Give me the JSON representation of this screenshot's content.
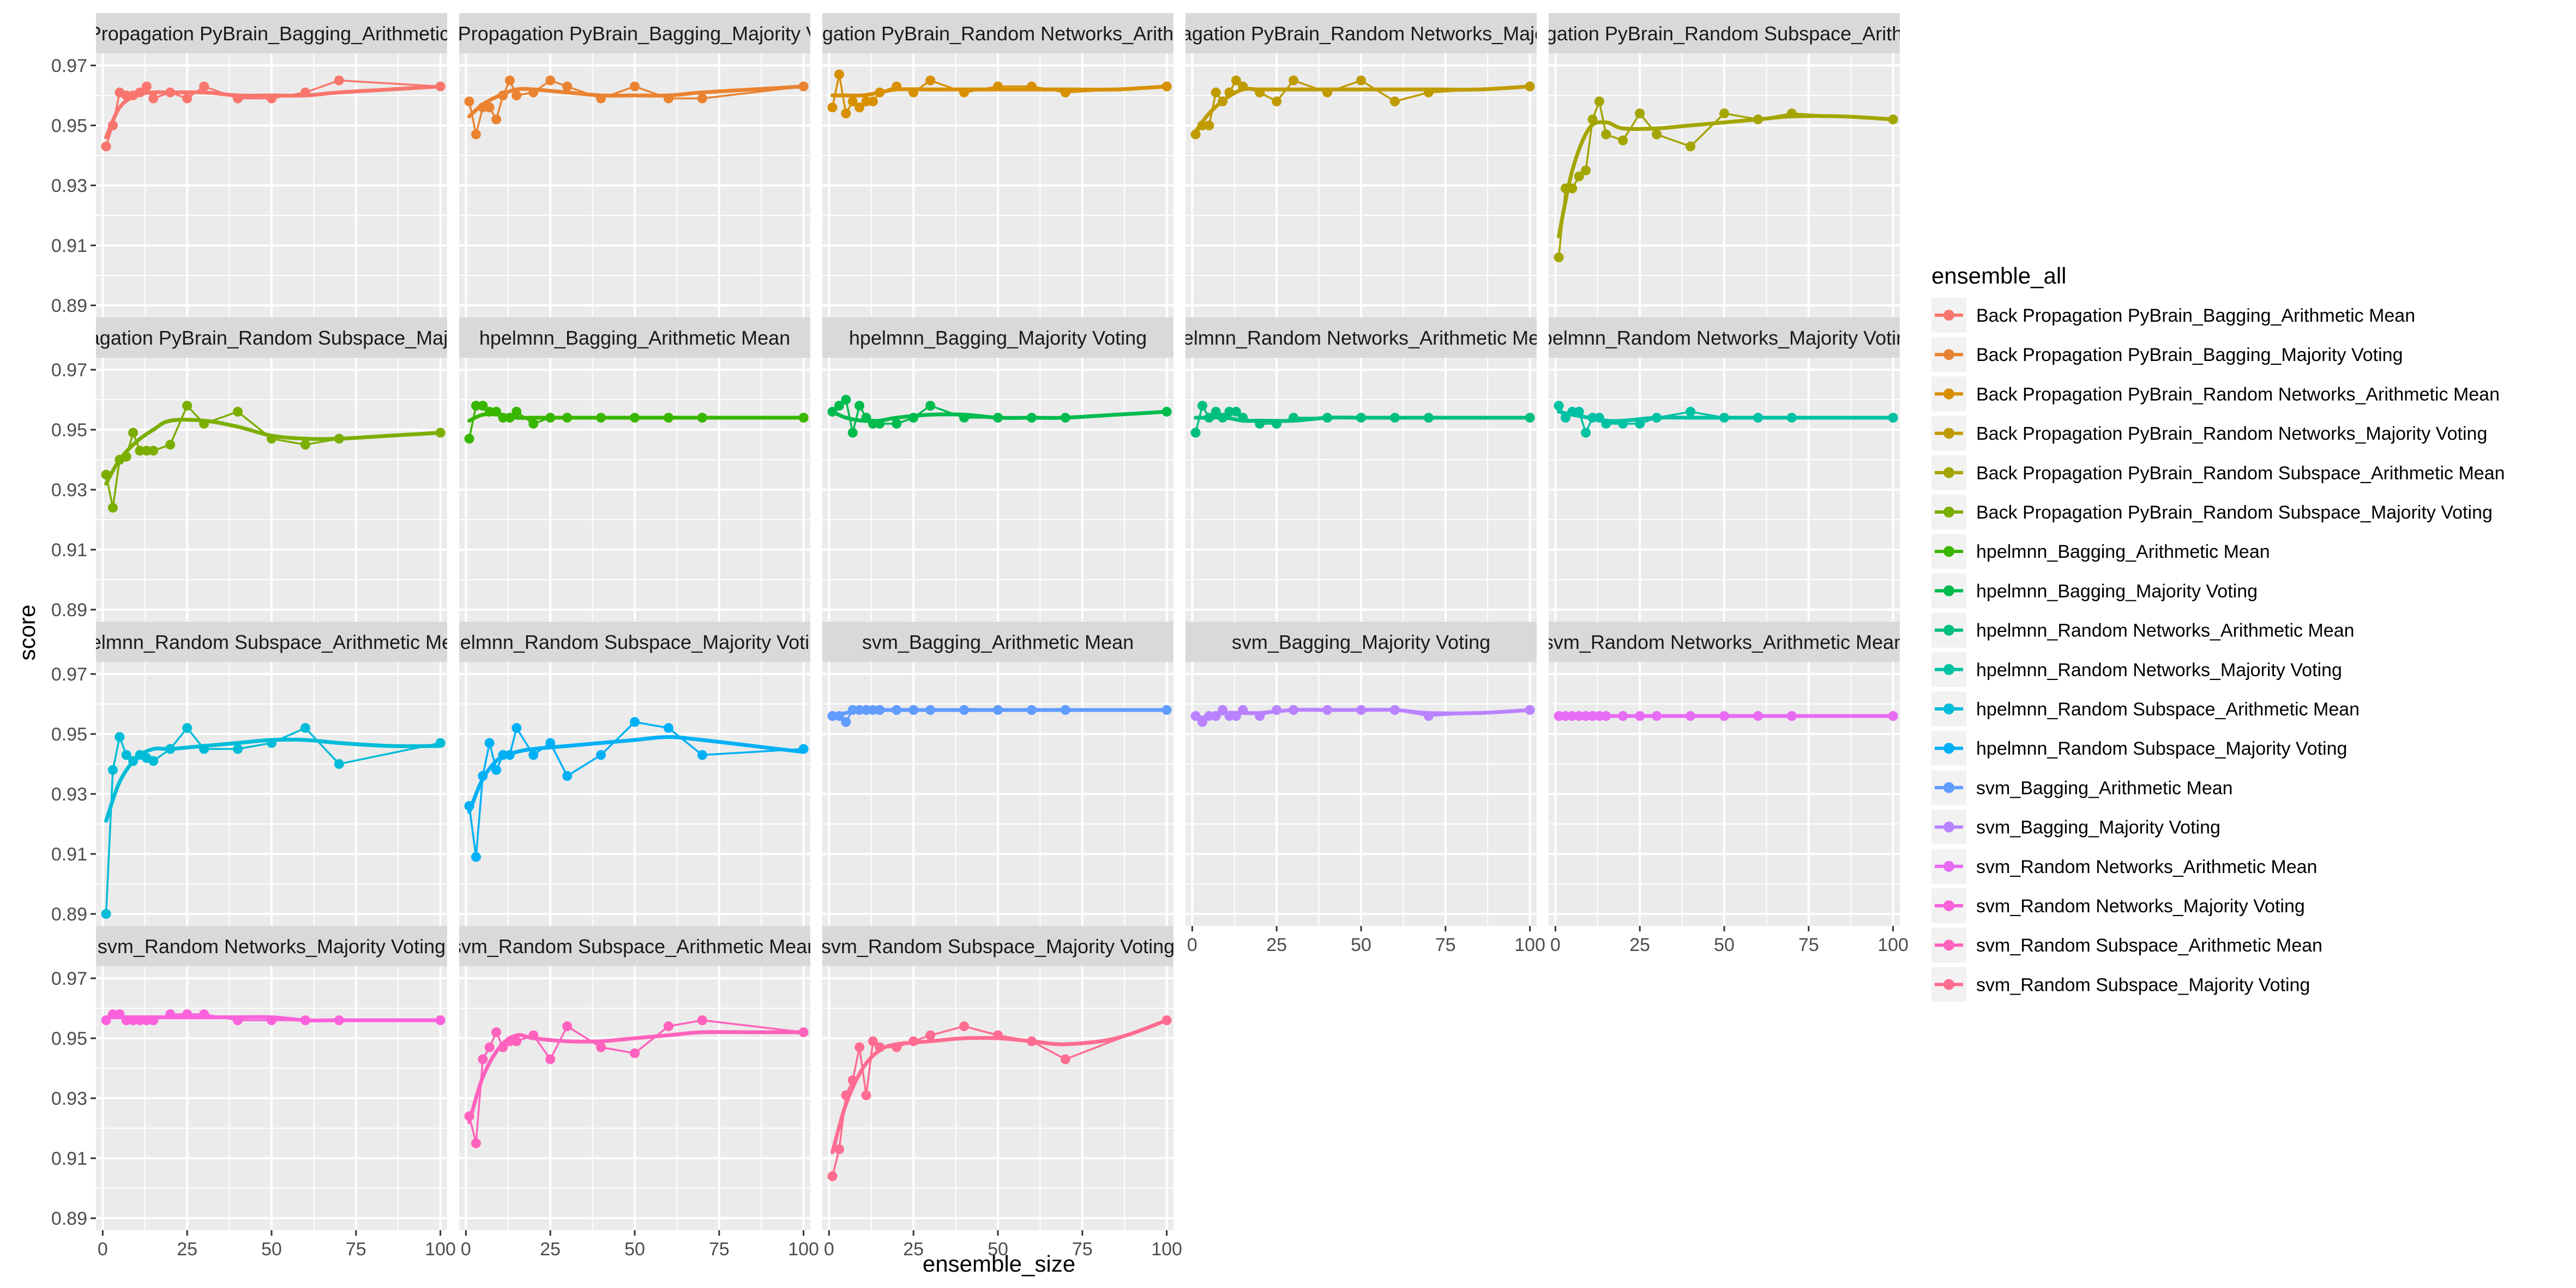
{
  "chart_data": {
    "type": "line",
    "xlabel": "ensemble_size",
    "ylabel": "score",
    "xlim": [
      -2,
      102
    ],
    "ylim": [
      0.886,
      0.974
    ],
    "x_ticks": [
      0,
      25,
      50,
      75,
      100
    ],
    "y_ticks": [
      0.89,
      0.91,
      0.93,
      0.95,
      0.97
    ],
    "x_tick_labels": [
      "0",
      "25",
      "50",
      "75",
      "100"
    ],
    "y_tick_labels": [
      "0.89",
      "0.91",
      "0.93",
      "0.95",
      "0.97"
    ],
    "facet_columns": 5,
    "grid": true,
    "panel_background": "#ebebeb",
    "strip_background": "#d9d9d9",
    "legend": {
      "title": "ensemble_all",
      "placement": "right"
    },
    "series": [
      {
        "name": "Back Propagation PyBrain_Bagging_Arithmetic Mean",
        "color": "#F8766D",
        "x": [
          1,
          3,
          5,
          7,
          9,
          11,
          13,
          15,
          20,
          25,
          30,
          40,
          50,
          60,
          70,
          100
        ],
        "y": [
          0.943,
          0.95,
          0.961,
          0.96,
          0.96,
          0.961,
          0.963,
          0.959,
          0.961,
          0.959,
          0.963,
          0.959,
          0.959,
          0.961,
          0.965,
          0.963
        ],
        "smooth": [
          0.946,
          0.956,
          0.96,
          0.961,
          0.961,
          0.961,
          0.96,
          0.96,
          0.96,
          0.961,
          0.962,
          0.963
        ]
      },
      {
        "name": "Back Propagation PyBrain_Bagging_Majority Voting",
        "color": "#EA8331",
        "x": [
          1,
          3,
          5,
          7,
          9,
          11,
          13,
          15,
          20,
          25,
          30,
          40,
          50,
          60,
          70,
          100
        ],
        "y": [
          0.958,
          0.947,
          0.956,
          0.956,
          0.952,
          0.96,
          0.965,
          0.96,
          0.961,
          0.965,
          0.963,
          0.959,
          0.963,
          0.959,
          0.959,
          0.963
        ],
        "smooth": [
          0.953,
          0.957,
          0.96,
          0.962,
          0.962,
          0.961,
          0.96,
          0.96,
          0.96,
          0.961,
          0.962,
          0.963
        ]
      },
      {
        "name": "Back Propagation PyBrain_Random Networks_Arithmetic Mean",
        "color": "#D89000",
        "x": [
          1,
          3,
          5,
          7,
          9,
          11,
          13,
          15,
          20,
          25,
          30,
          40,
          50,
          60,
          70,
          100
        ],
        "y": [
          0.956,
          0.967,
          0.954,
          0.958,
          0.956,
          0.958,
          0.958,
          0.961,
          0.963,
          0.961,
          0.965,
          0.961,
          0.963,
          0.963,
          0.961,
          0.963
        ],
        "smooth": [
          0.96,
          0.96,
          0.96,
          0.961,
          0.962,
          0.962,
          0.962,
          0.962,
          0.962,
          0.962,
          0.962,
          0.963
        ]
      },
      {
        "name": "Back Propagation PyBrain_Random Networks_Majority Voting",
        "color": "#C09B00",
        "x": [
          1,
          3,
          5,
          7,
          9,
          11,
          13,
          15,
          20,
          25,
          30,
          40,
          50,
          60,
          70,
          100
        ],
        "y": [
          0.947,
          0.95,
          0.95,
          0.961,
          0.958,
          0.961,
          0.965,
          0.963,
          0.961,
          0.958,
          0.965,
          0.961,
          0.965,
          0.958,
          0.961,
          0.963
        ],
        "smooth": [
          0.948,
          0.954,
          0.959,
          0.962,
          0.962,
          0.962,
          0.962,
          0.962,
          0.962,
          0.962,
          0.962,
          0.963
        ]
      },
      {
        "name": "Back Propagation PyBrain_Random Subspace_Arithmetic Mean",
        "color": "#A3A500",
        "x": [
          1,
          3,
          5,
          7,
          9,
          11,
          13,
          15,
          20,
          25,
          30,
          40,
          50,
          60,
          70,
          100
        ],
        "y": [
          0.906,
          0.929,
          0.929,
          0.933,
          0.935,
          0.952,
          0.958,
          0.947,
          0.945,
          0.954,
          0.947,
          0.943,
          0.954,
          0.952,
          0.954,
          0.952
        ],
        "smooth": [
          0.913,
          0.935,
          0.949,
          0.951,
          0.949,
          0.949,
          0.95,
          0.951,
          0.952,
          0.953,
          0.953,
          0.952
        ]
      },
      {
        "name": "Back Propagation PyBrain_Random Subspace_Majority Voting",
        "color": "#7CAE00",
        "x": [
          1,
          3,
          5,
          7,
          9,
          11,
          13,
          15,
          20,
          25,
          30,
          40,
          50,
          60,
          70,
          100
        ],
        "y": [
          0.935,
          0.924,
          0.94,
          0.941,
          0.949,
          0.943,
          0.943,
          0.943,
          0.945,
          0.958,
          0.952,
          0.956,
          0.947,
          0.945,
          0.947,
          0.949
        ],
        "smooth": [
          0.932,
          0.94,
          0.946,
          0.95,
          0.953,
          0.953,
          0.951,
          0.948,
          0.947,
          0.947,
          0.948,
          0.949
        ]
      },
      {
        "name": "hpelmnn_Bagging_Arithmetic Mean",
        "color": "#39B600",
        "x": [
          1,
          3,
          5,
          7,
          9,
          11,
          13,
          15,
          20,
          25,
          30,
          40,
          50,
          60,
          70,
          100
        ],
        "y": [
          0.947,
          0.958,
          0.958,
          0.956,
          0.956,
          0.954,
          0.954,
          0.956,
          0.952,
          0.954,
          0.954,
          0.954,
          0.954,
          0.954,
          0.954,
          0.954
        ],
        "smooth": [
          0.953,
          0.955,
          0.955,
          0.954,
          0.954,
          0.954,
          0.954,
          0.954,
          0.954,
          0.954,
          0.954,
          0.954
        ]
      },
      {
        "name": "hpelmnn_Bagging_Majority Voting",
        "color": "#00BB4E",
        "x": [
          1,
          3,
          5,
          7,
          9,
          11,
          13,
          15,
          20,
          25,
          30,
          40,
          50,
          60,
          70,
          100
        ],
        "y": [
          0.956,
          0.958,
          0.96,
          0.949,
          0.958,
          0.954,
          0.952,
          0.952,
          0.952,
          0.954,
          0.958,
          0.954,
          0.954,
          0.954,
          0.954,
          0.956
        ],
        "smooth": [
          0.956,
          0.954,
          0.953,
          0.953,
          0.954,
          0.955,
          0.955,
          0.954,
          0.954,
          0.954,
          0.955,
          0.956
        ]
      },
      {
        "name": "hpelmnn_Random Networks_Arithmetic Mean",
        "color": "#00BF7D",
        "x": [
          1,
          3,
          5,
          7,
          9,
          11,
          13,
          15,
          20,
          25,
          30,
          40,
          50,
          60,
          70,
          100
        ],
        "y": [
          0.949,
          0.958,
          0.954,
          0.956,
          0.954,
          0.956,
          0.956,
          0.954,
          0.952,
          0.952,
          0.954,
          0.954,
          0.954,
          0.954,
          0.954,
          0.954
        ],
        "smooth": [
          0.954,
          0.954,
          0.954,
          0.953,
          0.953,
          0.953,
          0.954,
          0.954,
          0.954,
          0.954,
          0.954,
          0.954
        ]
      },
      {
        "name": "hpelmnn_Random Networks_Majority Voting",
        "color": "#00C1A3",
        "x": [
          1,
          3,
          5,
          7,
          9,
          11,
          13,
          15,
          20,
          25,
          30,
          40,
          50,
          60,
          70,
          100
        ],
        "y": [
          0.958,
          0.954,
          0.956,
          0.956,
          0.949,
          0.954,
          0.954,
          0.952,
          0.952,
          0.952,
          0.954,
          0.956,
          0.954,
          0.954,
          0.954,
          0.954
        ],
        "smooth": [
          0.956,
          0.955,
          0.954,
          0.953,
          0.953,
          0.954,
          0.954,
          0.954,
          0.954,
          0.954,
          0.954,
          0.954
        ]
      },
      {
        "name": "hpelmnn_Random Subspace_Arithmetic Mean",
        "color": "#00BCD8",
        "x": [
          1,
          3,
          5,
          7,
          9,
          11,
          13,
          15,
          20,
          25,
          30,
          40,
          50,
          60,
          70,
          100
        ],
        "y": [
          0.89,
          0.938,
          0.949,
          0.943,
          0.941,
          0.943,
          0.942,
          0.941,
          0.945,
          0.952,
          0.945,
          0.945,
          0.947,
          0.952,
          0.94,
          0.947
        ],
        "smooth": [
          0.921,
          0.934,
          0.942,
          0.945,
          0.945,
          0.946,
          0.947,
          0.948,
          0.948,
          0.947,
          0.946,
          0.946
        ]
      },
      {
        "name": "hpelmnn_Random Subspace_Majority Voting",
        "color": "#00B0F6",
        "x": [
          1,
          3,
          5,
          7,
          9,
          11,
          13,
          15,
          20,
          25,
          30,
          40,
          50,
          60,
          70,
          100
        ],
        "y": [
          0.926,
          0.909,
          0.936,
          0.947,
          0.938,
          0.943,
          0.943,
          0.952,
          0.943,
          0.947,
          0.936,
          0.943,
          0.954,
          0.952,
          0.943,
          0.945
        ],
        "smooth": [
          0.924,
          0.935,
          0.942,
          0.944,
          0.945,
          0.946,
          0.947,
          0.948,
          0.949,
          0.948,
          0.946,
          0.944
        ]
      },
      {
        "name": "svm_Bagging_Arithmetic Mean",
        "color": "#619CFF",
        "x": [
          1,
          3,
          5,
          7,
          9,
          11,
          13,
          15,
          20,
          25,
          30,
          40,
          50,
          60,
          70,
          100
        ],
        "y": [
          0.956,
          0.956,
          0.954,
          0.958,
          0.958,
          0.958,
          0.958,
          0.958,
          0.958,
          0.958,
          0.958,
          0.958,
          0.958,
          0.958,
          0.958,
          0.958
        ],
        "smooth": [
          0.956,
          0.957,
          0.958,
          0.958,
          0.958,
          0.958,
          0.958,
          0.958,
          0.958,
          0.958,
          0.958,
          0.958
        ]
      },
      {
        "name": "svm_Bagging_Majority Voting",
        "color": "#B983FF",
        "x": [
          1,
          3,
          5,
          7,
          9,
          11,
          13,
          15,
          20,
          25,
          30,
          40,
          50,
          60,
          70,
          100
        ],
        "y": [
          0.956,
          0.954,
          0.956,
          0.956,
          0.958,
          0.956,
          0.956,
          0.958,
          0.956,
          0.958,
          0.958,
          0.958,
          0.958,
          0.958,
          0.956,
          0.958
        ],
        "smooth": [
          0.955,
          0.956,
          0.957,
          0.957,
          0.957,
          0.958,
          0.958,
          0.958,
          0.958,
          0.957,
          0.957,
          0.958
        ]
      },
      {
        "name": "svm_Random Networks_Arithmetic Mean",
        "color": "#E76BF3",
        "x": [
          1,
          3,
          5,
          7,
          9,
          11,
          13,
          15,
          20,
          25,
          30,
          40,
          50,
          60,
          70,
          100
        ],
        "y": [
          0.956,
          0.956,
          0.956,
          0.956,
          0.956,
          0.956,
          0.956,
          0.956,
          0.956,
          0.956,
          0.956,
          0.956,
          0.956,
          0.956,
          0.956,
          0.956
        ],
        "smooth": [
          0.956,
          0.956,
          0.956,
          0.956,
          0.956,
          0.956,
          0.956,
          0.956,
          0.956,
          0.956,
          0.956,
          0.956
        ]
      },
      {
        "name": "svm_Random Networks_Majority Voting",
        "color": "#FA62DB",
        "x": [
          1,
          3,
          5,
          7,
          9,
          11,
          13,
          15,
          20,
          25,
          30,
          40,
          50,
          60,
          70,
          100
        ],
        "y": [
          0.956,
          0.958,
          0.958,
          0.956,
          0.956,
          0.956,
          0.956,
          0.956,
          0.958,
          0.958,
          0.958,
          0.956,
          0.956,
          0.956,
          0.956,
          0.956
        ],
        "smooth": [
          0.957,
          0.957,
          0.957,
          0.957,
          0.957,
          0.957,
          0.957,
          0.957,
          0.956,
          0.956,
          0.956,
          0.956
        ]
      },
      {
        "name": "svm_Random Subspace_Arithmetic Mean",
        "color": "#FF62BC",
        "x": [
          1,
          3,
          5,
          7,
          9,
          11,
          13,
          15,
          20,
          25,
          30,
          40,
          50,
          60,
          70,
          100
        ],
        "y": [
          0.924,
          0.915,
          0.943,
          0.947,
          0.952,
          0.947,
          0.949,
          0.949,
          0.951,
          0.943,
          0.954,
          0.947,
          0.945,
          0.954,
          0.956,
          0.952
        ],
        "smooth": [
          0.922,
          0.937,
          0.947,
          0.951,
          0.95,
          0.949,
          0.949,
          0.95,
          0.951,
          0.952,
          0.952,
          0.952
        ]
      },
      {
        "name": "svm_Random Subspace_Majority Voting",
        "color": "#FF6C91",
        "x": [
          1,
          3,
          5,
          7,
          9,
          11,
          13,
          15,
          20,
          25,
          30,
          40,
          50,
          60,
          70,
          100
        ],
        "y": [
          0.904,
          0.913,
          0.931,
          0.936,
          0.947,
          0.931,
          0.949,
          0.947,
          0.947,
          0.949,
          0.951,
          0.954,
          0.951,
          0.949,
          0.943,
          0.956
        ],
        "smooth": [
          0.912,
          0.928,
          0.94,
          0.946,
          0.948,
          0.949,
          0.95,
          0.95,
          0.949,
          0.948,
          0.95,
          0.956
        ]
      }
    ]
  }
}
